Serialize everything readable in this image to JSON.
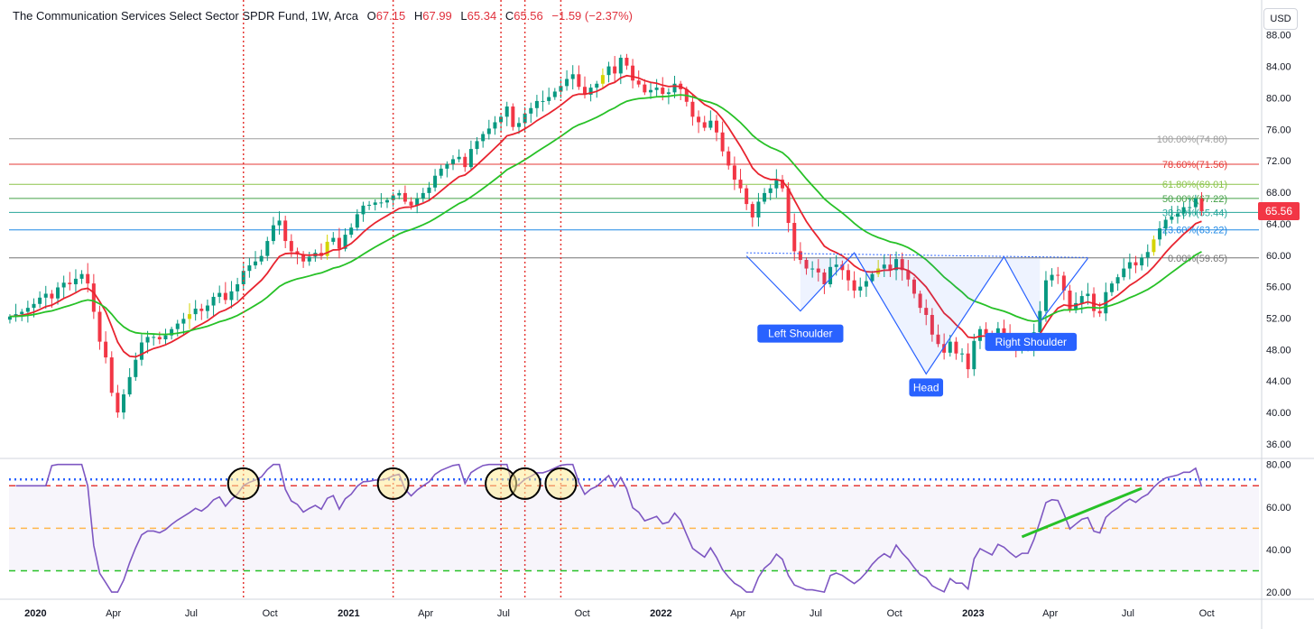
{
  "header": {
    "title": "The Communication Services Select Sector SPDR Fund, 1W, Arca",
    "open_label": "O",
    "open_value": "67.15",
    "high_label": "H",
    "high_value": "67.99",
    "low_label": "L",
    "low_value": "65.34",
    "close_label": "C",
    "close_value": "65.56",
    "change": "−1.59 (−2.37%)"
  },
  "currency": "USD",
  "last_price_label": "65.56",
  "colors": {
    "up": "#089981",
    "down": "#f23645",
    "doji": "#d4d400",
    "ema_fast": "#e8242f",
    "ema_slow": "#27c127",
    "rsi": "#7e57c2",
    "pattern": "#2962ff",
    "vline": "#e53935",
    "price_tag": "#f23645"
  },
  "chart_data": [
    {
      "type": "candlestick",
      "title": "",
      "y_ticks": [
        "88.00",
        "84.00",
        "80.00",
        "76.00",
        "72.00",
        "68.00",
        "64.00",
        "60.00",
        "56.00",
        "52.00",
        "48.00",
        "44.00",
        "40.00",
        "36.00"
      ],
      "ylim": [
        34.5,
        89.0
      ],
      "x_ticks": [
        "2020",
        "Apr",
        "Jul",
        "Oct",
        "2021",
        "Apr",
        "Jul",
        "Oct",
        "2022",
        "Apr",
        "Jul",
        "Oct",
        "2023",
        "Apr",
        "Jul",
        "Oct"
      ],
      "x_tick_dates": [
        "2020-01-01",
        "2020-04-01",
        "2020-07-01",
        "2020-10-01",
        "2021-01-01",
        "2021-04-01",
        "2021-07-01",
        "2021-10-01",
        "2022-01-01",
        "2022-04-01",
        "2022-07-01",
        "2022-10-01",
        "2023-01-01",
        "2023-04-01",
        "2023-07-01",
        "2023-10-01"
      ],
      "weekly_close_2019_12_02_to_2023_07_17": [
        52.2,
        52.5,
        52.8,
        53.3,
        53.8,
        54.6,
        55.1,
        54.5,
        55.9,
        56.5,
        56.3,
        57.0,
        57.6,
        56.4,
        52.8,
        49.0,
        47.0,
        42.5,
        40.0,
        42.3,
        44.5,
        46.7,
        48.9,
        49.6,
        49.6,
        49.3,
        49.8,
        50.6,
        51.3,
        51.9,
        52.5,
        53.2,
        52.9,
        53.6,
        54.7,
        55.2,
        54.3,
        55.4,
        56.3,
        58.0,
        58.7,
        59.2,
        59.9,
        61.8,
        63.8,
        64.4,
        61.8,
        60.5,
        60.1,
        59.2,
        59.8,
        60.3,
        59.9,
        61.7,
        62.2,
        60.8,
        62.6,
        63.5,
        65.2,
        66.3,
        66.4,
        66.7,
        66.7,
        67.0,
        67.6,
        67.9,
        66.8,
        66.3,
        67.2,
        67.9,
        68.6,
        70.1,
        71.0,
        71.6,
        72.2,
        72.5,
        71.2,
        73.5,
        74.5,
        75.4,
        76.1,
        76.9,
        77.6,
        78.9,
        76.3,
        76.8,
        78.0,
        78.7,
        79.6,
        79.6,
        80.1,
        80.8,
        81.5,
        82.4,
        83.0,
        81.4,
        80.4,
        81.3,
        81.8,
        82.9,
        84.0,
        83.1,
        85.1,
        84.1,
        82.2,
        81.7,
        80.7,
        81.0,
        81.3,
        80.5,
        80.7,
        81.8,
        81.1,
        79.5,
        77.6,
        76.9,
        76.2,
        77.1,
        75.6,
        73.2,
        71.4,
        69.6,
        68.5,
        66.5,
        64.8,
        66.8,
        67.9,
        68.5,
        69.6,
        68.5,
        64.1,
        60.5,
        59.4,
        58.3,
        58.3,
        57.8,
        56.3,
        58.5,
        58.8,
        58.1,
        56.8,
        55.5,
        56.0,
        56.7,
        57.6,
        58.3,
        58.8,
        58.1,
        59.5,
        58.1,
        56.9,
        55.1,
        53.3,
        52.4,
        49.9,
        48.7,
        47.6,
        49.0,
        47.5,
        47.5,
        45.5,
        49.1,
        50.6,
        49.9,
        49.2,
        50.7,
        50.1,
        49.0,
        48.0,
        48.5,
        48.5,
        50.2,
        52.9,
        56.8,
        57.5,
        57.4,
        55.5,
        53.0,
        53.9,
        54.8,
        55.1,
        52.9,
        52.6,
        55.3,
        56.4,
        57.2,
        58.3,
        59.1,
        58.7,
        59.7,
        60.4,
        62.0,
        63.4,
        64.5,
        64.9,
        65.3,
        66.1,
        66.1,
        67.2,
        65.6
      ],
      "weekly_close_first_date": "2019-12-02",
      "fibonacci_levels": [
        {
          "label": "100.00%(74.80)",
          "value": 74.8,
          "color": "#9e9e9e"
        },
        {
          "label": "78.60%(71.56)",
          "value": 71.56,
          "color": "#e53935"
        },
        {
          "label": "61.80%(69.01)",
          "value": 69.01,
          "color": "#8bc34a"
        },
        {
          "label": "50.00%(67.22)",
          "value": 67.22,
          "color": "#43a047"
        },
        {
          "label": "38.20%(65.44)",
          "value": 65.44,
          "color": "#26a69a"
        },
        {
          "label": "23.60%(63.22)",
          "value": 63.22,
          "color": "#1e88e5"
        },
        {
          "label": "0.00%(59.65)",
          "value": 59.65,
          "color": "#757575"
        }
      ],
      "pattern": {
        "type": "head-and-shoulders",
        "labels": {
          "left": "Left Shoulder",
          "head": "Head",
          "right": "Right Shoulder"
        },
        "points": [
          {
            "date": "2022-04-11",
            "value": 59.9
          },
          {
            "date": "2022-06-13",
            "value": 52.9
          },
          {
            "date": "2022-08-15",
            "value": 60.3
          },
          {
            "date": "2022-11-07",
            "value": 44.9
          },
          {
            "date": "2023-02-06",
            "value": 59.8
          },
          {
            "date": "2023-03-20",
            "value": 51.5
          },
          {
            "date": "2023-05-15",
            "value": 59.6
          }
        ]
      },
      "vertical_markers": [
        "2020-08-31",
        "2021-02-22",
        "2021-06-28",
        "2021-07-26",
        "2021-09-06"
      ]
    },
    {
      "type": "line",
      "series_name": "",
      "ylim": [
        17.5,
        82.0
      ],
      "y_ticks": [
        "80.00",
        "60.00",
        "40.00",
        "20.00"
      ],
      "levels": [
        {
          "value": 70,
          "style": "dashed",
          "color": "#e53935"
        },
        {
          "value": 50,
          "style": "dashed",
          "color": "#ffb74d"
        },
        {
          "value": 30,
          "style": "dashed",
          "color": "#27c127"
        },
        {
          "value": 73,
          "style": "dotted",
          "color": "#2962ff"
        }
      ],
      "circled_peaks": [
        "2020-08-31",
        "2021-02-22",
        "2021-06-28",
        "2021-07-26",
        "2021-09-06"
      ],
      "trendline": {
        "start": {
          "date": "2023-02-27",
          "value": 46
        },
        "end": {
          "date": "2023-07-17",
          "value": 68.8
        }
      }
    }
  ]
}
